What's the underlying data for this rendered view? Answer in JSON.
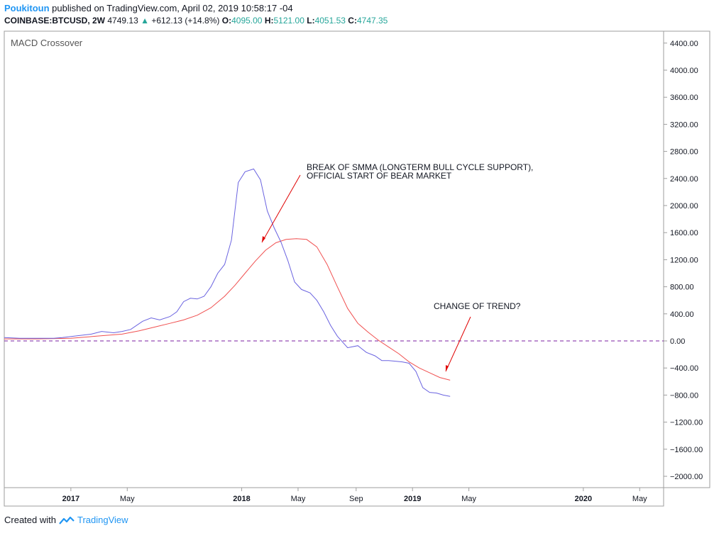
{
  "header": {
    "user": "Poukitoun",
    "published": "published on TradingView.com, April 02, 2019 10:58:17 -04",
    "symbol": "COINBASE:BTCUSD, 2W",
    "last": "4749.13",
    "up_arrow": "▲",
    "change": "+612.13 (+14.8%)",
    "o_label": "O:",
    "o_value": "4095.00",
    "h_label": "H:",
    "h_value": "5121.00",
    "l_label": "L:",
    "l_value": "4051.53",
    "c_label": "C:",
    "c_value": "4747.35"
  },
  "footer": {
    "created": "Created with",
    "brand": "TradingView",
    "logo_icon": "tradingview-logo-icon"
  },
  "colors": {
    "macd": "#6a63e0",
    "signal": "#f05050",
    "zero": "#7b1fa2",
    "annotation": "#e00000"
  },
  "chart_data": {
    "type": "line",
    "title": "MACD Crossover",
    "y_ticks": [
      "4400.00",
      "4000.00",
      "3600.00",
      "3200.00",
      "2800.00",
      "2400.00",
      "2000.00",
      "1600.00",
      "1200.00",
      "800.00",
      "400.00",
      "0.00",
      "−400.00",
      "−800.00",
      "−1200.00",
      "−1600.00",
      "−2000.00"
    ],
    "ylim": [
      -2200,
      4600
    ],
    "x_ticks": [
      {
        "label": "2017",
        "t": 2017.0,
        "bold": true
      },
      {
        "label": "May",
        "t": 2017.33,
        "bold": false
      },
      {
        "label": "2018",
        "t": 2018.0,
        "bold": true
      },
      {
        "label": "May",
        "t": 2018.33,
        "bold": false
      },
      {
        "label": "Sep",
        "t": 2018.67,
        "bold": false
      },
      {
        "label": "2019",
        "t": 2019.0,
        "bold": true
      },
      {
        "label": "May",
        "t": 2019.33,
        "bold": false
      },
      {
        "label": "2020",
        "t": 2020.0,
        "bold": true
      },
      {
        "label": "May",
        "t": 2020.33,
        "bold": false
      }
    ],
    "xlim": [
      2016.61,
      2020.47
    ],
    "zero_line": 0,
    "series": [
      {
        "key": "macd",
        "x": [
          2016.61,
          2016.7,
          2016.8,
          2016.9,
          2016.95,
          2017.05,
          2017.12,
          2017.18,
          2017.25,
          2017.3,
          2017.35,
          2017.42,
          2017.47,
          2017.52,
          2017.58,
          2017.62,
          2017.66,
          2017.7,
          2017.74,
          2017.78,
          2017.82,
          2017.86,
          2017.9,
          2017.94,
          2017.98,
          2018.02,
          2018.07,
          2018.11,
          2018.15,
          2018.19,
          2018.23,
          2018.27,
          2018.31,
          2018.35,
          2018.4,
          2018.44,
          2018.48,
          2018.52,
          2018.56,
          2018.62,
          2018.68,
          2018.73,
          2018.78,
          2018.82,
          2018.86,
          2018.9,
          2018.94,
          2018.98,
          2019.02,
          2019.06,
          2019.1,
          2019.14,
          2019.18,
          2019.22
        ],
        "y": [
          50,
          40,
          40,
          40,
          50,
          80,
          100,
          140,
          120,
          140,
          170,
          290,
          340,
          310,
          360,
          430,
          580,
          630,
          620,
          660,
          800,
          1000,
          1130,
          1490,
          2340,
          2500,
          2540,
          2380,
          1920,
          1670,
          1460,
          1190,
          870,
          760,
          710,
          600,
          430,
          230,
          70,
          -100,
          -70,
          -170,
          -220,
          -290,
          -290,
          -300,
          -310,
          -330,
          -450,
          -690,
          -760,
          -770,
          -800,
          -820
        ]
      },
      {
        "key": "signal",
        "x": [
          2016.61,
          2016.8,
          2017.0,
          2017.15,
          2017.3,
          2017.4,
          2017.5,
          2017.58,
          2017.66,
          2017.74,
          2017.82,
          2017.9,
          2017.96,
          2018.02,
          2018.08,
          2018.14,
          2018.2,
          2018.26,
          2018.32,
          2018.38,
          2018.44,
          2018.5,
          2018.56,
          2018.62,
          2018.68,
          2018.74,
          2018.8,
          2018.86,
          2018.92,
          2018.98,
          2019.04,
          2019.1,
          2019.16,
          2019.22
        ],
        "y": [
          30,
          30,
          40,
          70,
          100,
          150,
          210,
          260,
          310,
          380,
          490,
          660,
          820,
          1000,
          1180,
          1340,
          1450,
          1500,
          1510,
          1500,
          1390,
          1130,
          800,
          480,
          260,
          130,
          10,
          -90,
          -190,
          -310,
          -400,
          -470,
          -540,
          -580
        ]
      }
    ],
    "annotations": [
      {
        "text": "BREAK OF SMMA (LONGTERM BULL CYCLE SUPPORT),",
        "text2": "OFFICIAL START OF BEAR MARKET"
      },
      {
        "text": "CHANGE OF TREND?",
        "text2": ""
      }
    ]
  }
}
